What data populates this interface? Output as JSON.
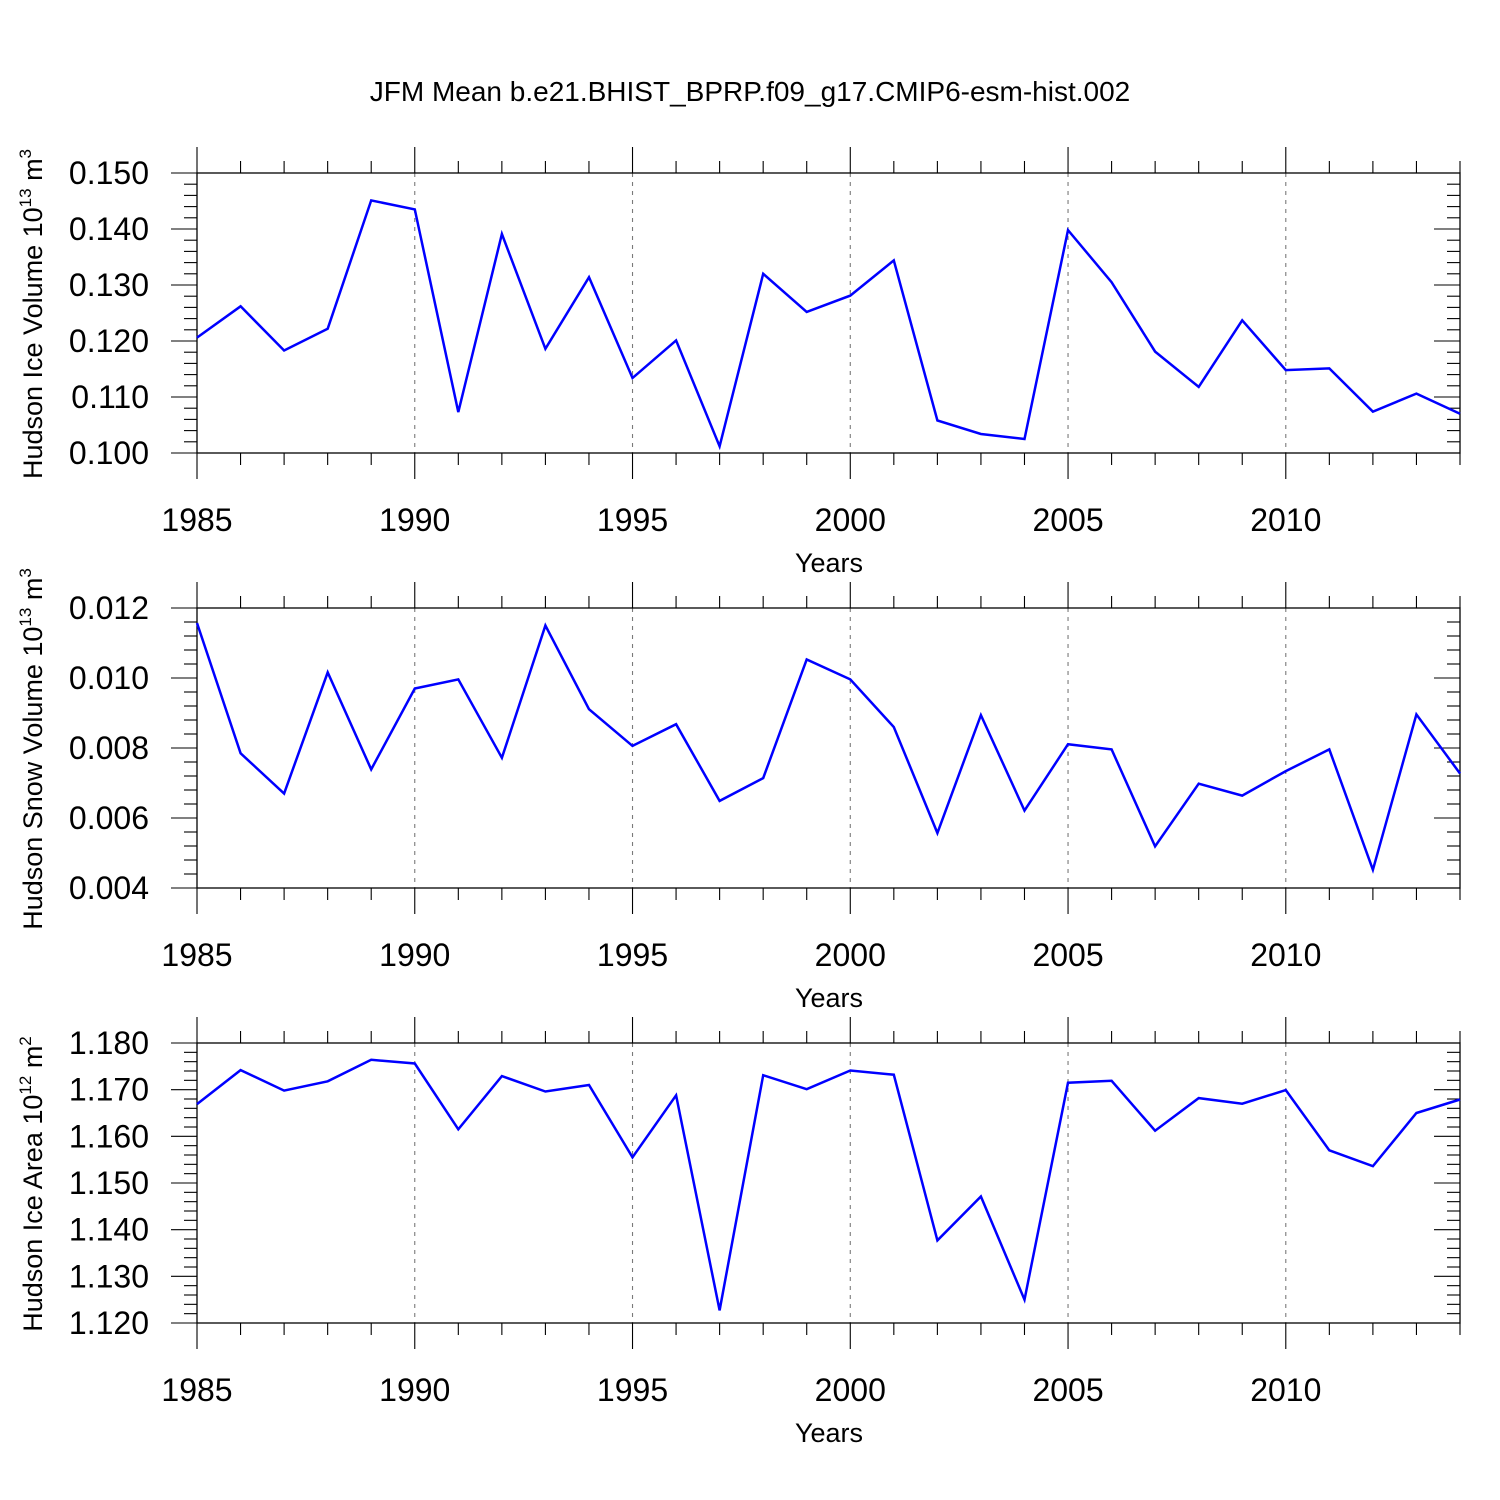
{
  "page": {
    "title": "JFM Mean b.e21.BHIST_BPRP.f09_g17.CMIP6-esm-hist.002"
  },
  "style": {
    "line_color": "#0000ff",
    "grid_color": "#7a7a7a"
  },
  "chart_data": [
    {
      "type": "line",
      "xlabel": "Years",
      "ylabel": {
        "text": "Hudson Ice Volume 10",
        "exp": "13",
        "unit": " m",
        "unit_exp": "3"
      },
      "xlim": [
        1985,
        2014
      ],
      "ylim": [
        0.1,
        0.15
      ],
      "xticks": [
        1985,
        1990,
        1995,
        2000,
        2005,
        2010
      ],
      "yticks": [
        "0.100",
        "0.110",
        "0.120",
        "0.130",
        "0.140",
        "0.150"
      ],
      "grid": "vertical dashed at major x ticks",
      "x": [
        1985,
        1986,
        1987,
        1988,
        1989,
        1990,
        1991,
        1992,
        1993,
        1994,
        1995,
        1996,
        1997,
        1998,
        1999,
        2000,
        2001,
        2002,
        2003,
        2004,
        2005,
        2006,
        2007,
        2008,
        2009,
        2010,
        2011,
        2012,
        2013,
        2014
      ],
      "values": [
        0.1206,
        0.1262,
        0.1183,
        0.1222,
        0.1451,
        0.1435,
        0.1073,
        0.1391,
        0.1186,
        0.1314,
        0.1134,
        0.1201,
        0.1012,
        0.132,
        0.1252,
        0.1281,
        0.1344,
        0.1058,
        0.1034,
        0.1025,
        0.1398,
        0.1305,
        0.1181,
        0.1118,
        0.1237,
        0.1148,
        0.1151,
        0.1074,
        0.1106,
        0.107
      ]
    },
    {
      "type": "line",
      "xlabel": "Years",
      "ylabel": {
        "text": "Hudson Snow Volume 10",
        "exp": "13",
        "unit": " m",
        "unit_exp": "3"
      },
      "xlim": [
        1985,
        2014
      ],
      "ylim": [
        0.004,
        0.012
      ],
      "xticks": [
        1985,
        1990,
        1995,
        2000,
        2005,
        2010
      ],
      "yticks": [
        "0.004",
        "0.006",
        "0.008",
        "0.010",
        "0.012"
      ],
      "grid": "vertical dashed at major x ticks",
      "x": [
        1985,
        1986,
        1987,
        1988,
        1989,
        1990,
        1991,
        1992,
        1993,
        1994,
        1995,
        1996,
        1997,
        1998,
        1999,
        2000,
        2001,
        2002,
        2003,
        2004,
        2005,
        2006,
        2007,
        2008,
        2009,
        2010,
        2011,
        2012,
        2013,
        2014
      ],
      "values": [
        0.01157,
        0.00785,
        0.0067,
        0.01016,
        0.00739,
        0.0097,
        0.00996,
        0.00772,
        0.0115,
        0.00911,
        0.00806,
        0.00868,
        0.00649,
        0.00714,
        0.01053,
        0.00996,
        0.0086,
        0.00557,
        0.00894,
        0.00621,
        0.00811,
        0.00796,
        0.00519,
        0.00698,
        0.00664,
        0.00734,
        0.00796,
        0.00452,
        0.00896,
        0.00727
      ]
    },
    {
      "type": "line",
      "xlabel": "Years",
      "ylabel": {
        "text": "Hudson Ice Area 10",
        "exp": "12",
        "unit": " m",
        "unit_exp": "2"
      },
      "xlim": [
        1985,
        2014
      ],
      "ylim": [
        1.12,
        1.18
      ],
      "xticks": [
        1985,
        1990,
        1995,
        2000,
        2005,
        2010
      ],
      "yticks": [
        "1.120",
        "1.130",
        "1.140",
        "1.150",
        "1.160",
        "1.170",
        "1.180"
      ],
      "grid": "vertical dashed at major x ticks",
      "x": [
        1985,
        1986,
        1987,
        1988,
        1989,
        1990,
        1991,
        1992,
        1993,
        1994,
        1995,
        1996,
        1997,
        1998,
        1999,
        2000,
        2001,
        2002,
        2003,
        2004,
        2005,
        2006,
        2007,
        2008,
        2009,
        2010,
        2011,
        2012,
        2013,
        2014
      ],
      "values": [
        1.1669,
        1.1742,
        1.1698,
        1.1718,
        1.1764,
        1.1756,
        1.1615,
        1.1729,
        1.1696,
        1.171,
        1.1555,
        1.1688,
        1.1227,
        1.1731,
        1.1701,
        1.1741,
        1.1732,
        1.1377,
        1.1471,
        1.125,
        1.1715,
        1.1719,
        1.1612,
        1.1682,
        1.167,
        1.1699,
        1.157,
        1.1536,
        1.165,
        1.1679
      ]
    }
  ]
}
